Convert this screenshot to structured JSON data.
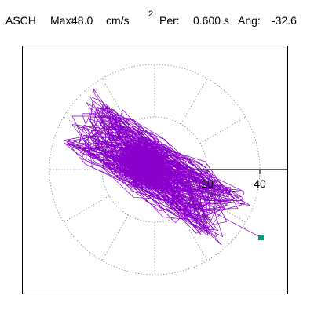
{
  "header": {
    "station": "ASCH",
    "max_label": "Max:",
    "max_value": "48.0",
    "unit": "cm/s",
    "unit_exponent": "2",
    "period_label": "Per:",
    "period_value": "0.600 s",
    "angle_label": "Ang:",
    "angle_value": "-32.6"
  },
  "chart_data": {
    "type": "polar-orbit",
    "radial_ticks": [
      "20",
      "40"
    ],
    "radial_tick_values": [
      20,
      40
    ],
    "rings": [
      20,
      40
    ],
    "spokes": 12,
    "max_radius": 48.0,
    "angle_deg": -32.6,
    "colors": {
      "trace": "#8a00cc",
      "grid": "#777777",
      "axis": "#000000",
      "marker": "#009977"
    }
  }
}
